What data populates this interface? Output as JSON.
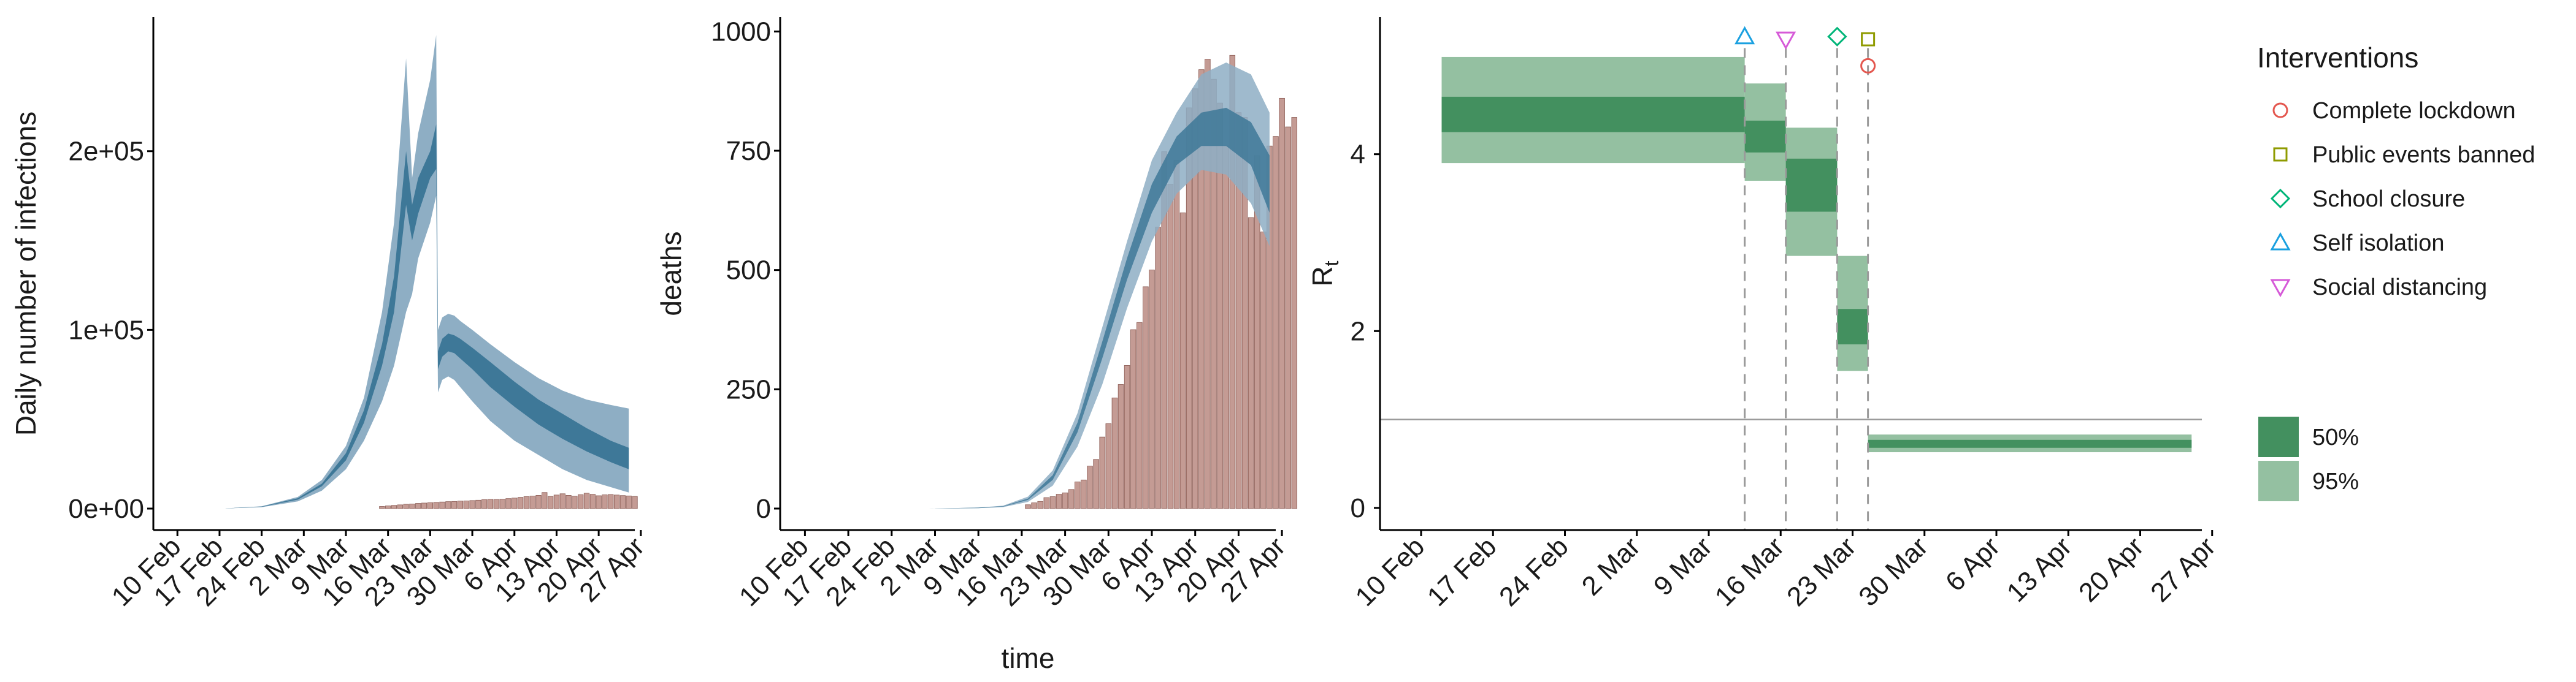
{
  "colors": {
    "ci95_blue": "#8eaec4",
    "ci50_blue": "#3e7898",
    "bars": "#c49b94",
    "bars_edge": "#8a5a52",
    "rt95": "#94c0a1",
    "rt50": "#43905f",
    "lockdown": "#e4574f",
    "public_events": "#8f9b00",
    "school": "#00b578",
    "self_isolation": "#1aa0e0",
    "social_distancing": "#d65ad8"
  },
  "chart_data": [
    {
      "type": "area",
      "title": "",
      "xlabel": "",
      "ylabel": "Daily number of infections",
      "x_ticks": [
        "10 Feb",
        "17 Feb",
        "24 Feb",
        "2 Mar",
        "9 Mar",
        "16 Mar",
        "23 Mar",
        "30 Mar",
        "6 Apr",
        "13 Apr",
        "20 Apr",
        "27 Apr"
      ],
      "y_ticks": [
        "0e+00",
        "1e+05",
        "2e+05"
      ],
      "ylim": [
        -12000,
        275000
      ],
      "xlim_days": [
        -4,
        76
      ],
      "day0": "10 Feb",
      "series": [
        {
          "ribbon": "95%",
          "days": [
            8,
            14,
            20,
            24,
            28,
            31,
            34,
            36,
            38,
            39,
            40,
            42,
            43,
            43.3,
            44,
            45,
            46,
            47,
            49,
            52,
            56,
            60,
            64,
            68,
            72,
            75
          ],
          "lower": [
            100,
            800,
            4000,
            10000,
            22000,
            38000,
            60000,
            80000,
            110000,
            120000,
            140000,
            160000,
            175000,
            65000,
            72000,
            74000,
            72000,
            68000,
            60000,
            49000,
            38000,
            30000,
            22000,
            16000,
            12000,
            9000
          ],
          "upper": [
            150,
            1300,
            6500,
            16000,
            35000,
            62000,
            110000,
            160000,
            252000,
            185000,
            210000,
            240000,
            265000,
            100000,
            107000,
            109000,
            108000,
            105000,
            100000,
            92000,
            82000,
            73000,
            66000,
            61000,
            58000,
            56000
          ]
        },
        {
          "ribbon": "50%",
          "days": [
            8,
            14,
            20,
            24,
            28,
            31,
            34,
            36,
            38,
            39,
            40,
            42,
            43,
            43.3,
            44,
            45,
            46,
            47,
            49,
            52,
            56,
            60,
            64,
            68,
            72,
            75
          ],
          "lower": [
            120,
            1000,
            5000,
            12500,
            27000,
            48000,
            80000,
            110000,
            170000,
            150000,
            165000,
            185000,
            190000,
            78000,
            85000,
            88000,
            87000,
            84000,
            78000,
            68000,
            57000,
            47000,
            39000,
            32000,
            26000,
            22000
          ],
          "upper": [
            135,
            1150,
            5800,
            14000,
            31000,
            55000,
            92000,
            130000,
            200000,
            170000,
            185000,
            200000,
            215000,
            88000,
            95000,
            98000,
            97000,
            95000,
            90000,
            82000,
            71000,
            61000,
            53000,
            45000,
            38000,
            34000
          ]
        }
      ],
      "bars": {
        "start_day": 34,
        "values": [
          1200,
          1500,
          1800,
          2100,
          2400,
          2600,
          2900,
          3100,
          3300,
          3500,
          3700,
          3900,
          4000,
          4200,
          4300,
          4500,
          4700,
          5000,
          5200,
          5100,
          5300,
          5600,
          5900,
          6300,
          6700,
          7000,
          7400,
          9000,
          6800,
          7600,
          8300,
          7400,
          6900,
          7800,
          8600,
          8000,
          7200,
          7700,
          7900,
          7600,
          7300,
          7100,
          6800
        ]
      }
    },
    {
      "type": "bar",
      "title": "",
      "xlabel": "time",
      "ylabel": "deaths",
      "x_ticks": [
        "10 Feb",
        "17 Feb",
        "24 Feb",
        "2 Mar",
        "9 Mar",
        "16 Mar",
        "23 Mar",
        "30 Mar",
        "6 Apr",
        "13 Apr",
        "20 Apr",
        "27 Apr"
      ],
      "y_ticks": [
        "0",
        "250",
        "500",
        "750",
        "1000"
      ],
      "ylim": [
        -45,
        1030
      ],
      "xlim_days": [
        -4,
        76
      ],
      "day0": "10 Feb",
      "bars": {
        "start_day": 36,
        "values": [
          8,
          12,
          15,
          23,
          25,
          30,
          33,
          40,
          56,
          60,
          89,
          103,
          150,
          178,
          232,
          260,
          300,
          375,
          390,
          465,
          500,
          590,
          748,
          680,
          730,
          620,
          840,
          880,
          920,
          942,
          900,
          850,
          760,
          950,
          830,
          820,
          610,
          740,
          580,
          760,
          780,
          860,
          800,
          820
        ]
      },
      "series": [
        {
          "ribbon": "95%",
          "days": [
            20,
            28,
            32,
            36,
            40,
            44,
            48,
            52,
            56,
            60,
            64,
            68,
            72,
            75
          ],
          "lower": [
            0,
            1,
            3,
            14,
            48,
            130,
            260,
            420,
            560,
            660,
            710,
            700,
            640,
            550
          ],
          "upper": [
            0,
            2,
            6,
            25,
            80,
            200,
            380,
            560,
            730,
            830,
            910,
            935,
            910,
            830
          ]
        },
        {
          "ribbon": "50%",
          "days": [
            20,
            28,
            32,
            36,
            40,
            44,
            48,
            52,
            56,
            60,
            64,
            68,
            72,
            75
          ],
          "lower": [
            0,
            1,
            4,
            18,
            60,
            160,
            315,
            480,
            620,
            720,
            760,
            760,
            720,
            620
          ],
          "upper": [
            0,
            2,
            5,
            21,
            70,
            180,
            350,
            525,
            680,
            780,
            830,
            840,
            810,
            740
          ]
        }
      ]
    },
    {
      "type": "area",
      "title": "",
      "xlabel": "",
      "ylabel": "R",
      "ylabel_subscript": "t",
      "x_ticks": [
        "10 Feb",
        "17 Feb",
        "24 Feb",
        "2 Mar",
        "9 Mar",
        "16 Mar",
        "23 Mar",
        "30 Mar",
        "6 Apr",
        "13 Apr",
        "20 Apr",
        "27 Apr"
      ],
      "y_ticks": [
        "0",
        "2",
        "4"
      ],
      "ylim": [
        -0.25,
        5.55
      ],
      "xlim_days": [
        -4,
        76
      ],
      "day0": "10 Feb",
      "reference_line": 1,
      "steps": [
        {
          "start": 2,
          "end": 31.5,
          "lo95": 3.9,
          "hi95": 5.1,
          "lo50": 4.25,
          "hi50": 4.65
        },
        {
          "start": 31.5,
          "end": 35.5,
          "lo95": 3.7,
          "hi95": 4.8,
          "lo50": 4.02,
          "hi50": 4.38
        },
        {
          "start": 35.5,
          "end": 40.5,
          "lo95": 2.85,
          "hi95": 4.3,
          "lo50": 3.35,
          "hi50": 3.95
        },
        {
          "start": 40.5,
          "end": 43.5,
          "lo95": 1.55,
          "hi95": 2.85,
          "lo50": 1.85,
          "hi50": 2.25
        },
        {
          "start": 43.5,
          "end": 75,
          "lo95": 0.63,
          "hi95": 0.83,
          "lo50": 0.68,
          "hi50": 0.77
        }
      ],
      "intervention_days": [
        31.5,
        35.5,
        40.5,
        43.5
      ],
      "markers": [
        {
          "name": "Self isolation",
          "day": 31.5,
          "y": 5.33,
          "shape": "triangle-up"
        },
        {
          "name": "Social distancing",
          "day": 35.5,
          "y": 5.3,
          "shape": "triangle-down"
        },
        {
          "name": "School closure",
          "day": 40.5,
          "y": 5.33,
          "shape": "diamond"
        },
        {
          "name": "Public events banned",
          "day": 43.5,
          "y": 5.3,
          "shape": "square"
        },
        {
          "name": "Complete lockdown",
          "day": 43.5,
          "y": 5.0,
          "shape": "circle"
        }
      ]
    }
  ],
  "legend": {
    "interventions_title": "Interventions",
    "interventions": [
      {
        "label": "Complete lockdown",
        "shape": "circle",
        "color_key": "lockdown"
      },
      {
        "label": "Public events banned",
        "shape": "square",
        "color_key": "public_events"
      },
      {
        "label": "School closure",
        "shape": "diamond",
        "color_key": "school"
      },
      {
        "label": "Self isolation",
        "shape": "triangle-up",
        "color_key": "self_isolation"
      },
      {
        "label": "Social distancing",
        "shape": "triangle-down",
        "color_key": "social_distancing"
      }
    ],
    "ribbons": [
      {
        "label": "50%",
        "color_key": "rt50"
      },
      {
        "label": "95%",
        "color_key": "rt95"
      }
    ]
  }
}
